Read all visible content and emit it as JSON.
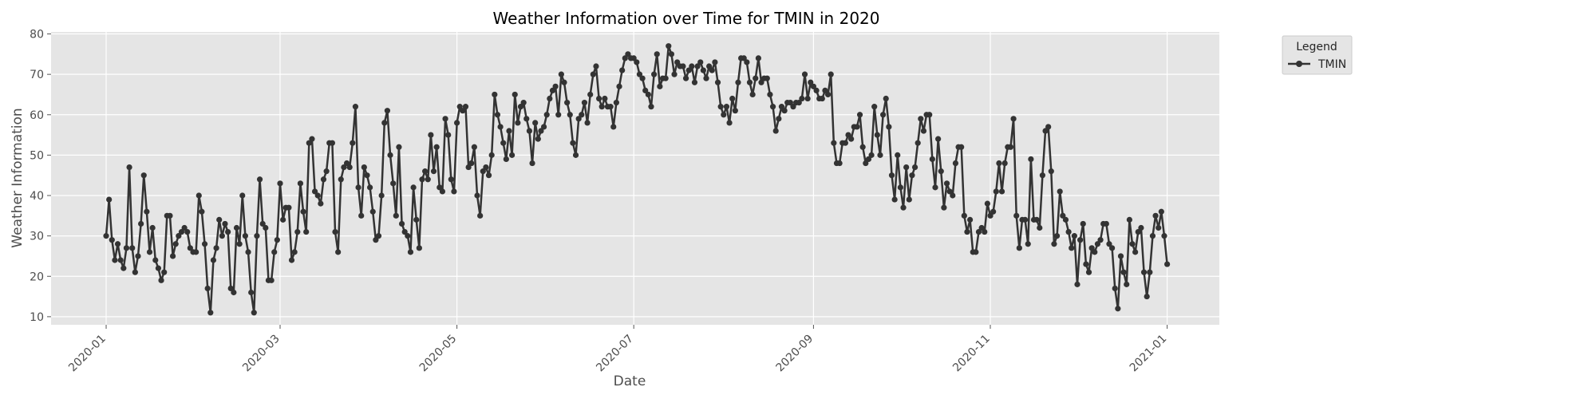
{
  "chart_data": {
    "type": "line",
    "title": "Weather Information over Time for TMIN in 2020",
    "xlabel": "Date",
    "ylabel": "Weather Information",
    "x_ticks": [
      "2020-01",
      "2020-03",
      "2020-05",
      "2020-07",
      "2020-09",
      "2020-11",
      "2021-01"
    ],
    "y_ticks": [
      10,
      20,
      30,
      40,
      50,
      60,
      70,
      80
    ],
    "ylim": [
      8,
      80.5
    ],
    "xlim": [
      "2019-12-13",
      "2021-01-19"
    ],
    "grid": true,
    "legend": {
      "title": "Legend",
      "placement": "outside-right-top"
    },
    "series": [
      {
        "name": "TMIN",
        "color": "#333333",
        "x_start": "2020-01-01",
        "x_step": "1 day",
        "values": [
          30,
          39,
          29,
          24,
          28,
          24,
          22,
          27,
          47,
          27,
          21,
          25,
          33,
          45,
          36,
          26,
          32,
          24,
          22,
          19,
          21,
          35,
          35,
          25,
          28,
          30,
          31,
          32,
          31,
          27,
          26,
          26,
          40,
          36,
          28,
          17,
          11,
          24,
          27,
          34,
          30,
          33,
          31,
          17,
          16,
          32,
          28,
          40,
          30,
          26,
          16,
          11,
          30,
          44,
          33,
          32,
          19,
          19,
          26,
          29,
          43,
          34,
          37,
          37,
          24,
          26,
          31,
          43,
          36,
          31,
          53,
          54,
          41,
          40,
          38,
          44,
          46,
          53,
          53,
          31,
          26,
          44,
          47,
          48,
          47,
          53,
          62,
          42,
          35,
          47,
          45,
          42,
          36,
          29,
          30,
          40,
          58,
          61,
          50,
          43,
          35,
          52,
          33,
          31,
          30,
          26,
          42,
          34,
          27,
          44,
          46,
          44,
          55,
          46,
          52,
          42,
          41,
          59,
          55,
          44,
          41,
          58,
          62,
          61,
          62,
          47,
          48,
          52,
          40,
          35,
          46,
          47,
          45,
          50,
          65,
          60,
          57,
          53,
          49,
          56,
          50,
          65,
          58,
          62,
          63,
          59,
          56,
          48,
          58,
          54,
          56,
          57,
          60,
          64,
          66,
          67,
          60,
          70,
          68,
          63,
          60,
          53,
          50,
          59,
          60,
          63,
          58,
          65,
          70,
          72,
          64,
          62,
          64,
          62,
          62,
          57,
          63,
          67,
          71,
          74,
          75,
          74,
          74,
          73,
          70,
          69,
          66,
          65,
          62,
          70,
          75,
          67,
          69,
          69,
          77,
          75,
          70,
          73,
          72,
          72,
          69,
          71,
          72,
          68,
          72,
          73,
          71,
          69,
          72,
          71,
          73,
          68,
          62,
          60,
          62,
          58,
          64,
          61,
          68,
          74,
          74,
          73,
          68,
          65,
          69,
          74,
          68,
          69,
          69,
          65,
          62,
          56,
          59,
          62,
          61,
          63,
          63,
          62,
          63,
          63,
          64,
          70,
          64,
          68,
          67,
          66,
          64,
          64,
          66,
          65,
          70,
          53,
          48,
          48,
          53,
          53,
          55,
          54,
          57,
          57,
          60,
          52,
          48,
          49,
          50,
          62,
          55,
          50,
          60,
          64,
          57,
          45,
          39,
          50,
          42,
          37,
          47,
          39,
          45,
          47,
          53,
          59,
          56,
          60,
          60,
          49,
          42,
          54,
          46,
          37,
          43,
          41,
          40,
          48,
          52,
          52,
          35,
          31,
          34,
          26,
          26,
          31,
          32,
          31,
          38,
          35,
          36,
          41,
          48,
          41,
          48,
          52,
          52,
          59,
          35,
          27,
          34,
          34,
          28,
          49,
          34,
          34,
          32,
          45,
          56,
          57,
          46,
          28,
          30,
          41,
          35,
          34,
          31,
          27,
          30,
          18,
          29,
          33,
          23,
          21,
          27,
          26,
          28,
          29,
          33,
          33,
          28,
          27,
          17,
          12,
          25,
          21,
          18,
          34,
          28,
          26,
          31,
          32,
          21,
          15,
          21,
          30,
          35,
          32,
          36,
          30,
          23
        ]
      }
    ]
  }
}
